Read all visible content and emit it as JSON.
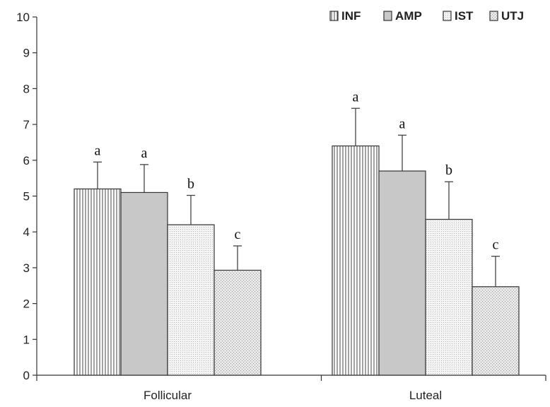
{
  "chart_data": {
    "type": "bar",
    "title": "",
    "xlabel": "",
    "ylabel": "",
    "ylim": [
      0,
      10
    ],
    "yticks": [
      0,
      1,
      2,
      3,
      4,
      5,
      6,
      7,
      8,
      9,
      10
    ],
    "grid": false,
    "legend_position": "top-right",
    "categories": [
      "Follicular",
      "Luteal"
    ],
    "series": [
      {
        "name": "INF",
        "values": [
          5.2,
          6.4
        ],
        "errors": [
          0.75,
          1.05
        ],
        "significance": [
          "a",
          "a"
        ],
        "fill": "#ffffff",
        "pattern": "vertical-lines"
      },
      {
        "name": "AMP",
        "values": [
          5.1,
          5.7
        ],
        "errors": [
          0.78,
          1.0
        ],
        "significance": [
          "a",
          "a"
        ],
        "fill": "#c8c8c8",
        "pattern": "solid"
      },
      {
        "name": "IST",
        "values": [
          4.2,
          4.35
        ],
        "errors": [
          0.82,
          1.05
        ],
        "significance": [
          "b",
          "b"
        ],
        "fill": "#efefef",
        "pattern": "fine-dots"
      },
      {
        "name": "UTJ",
        "values": [
          2.93,
          2.47
        ],
        "errors": [
          0.68,
          0.85
        ],
        "significance": [
          "c",
          "c"
        ],
        "fill": "#e2e2e2",
        "pattern": "cross-hatch"
      }
    ]
  }
}
